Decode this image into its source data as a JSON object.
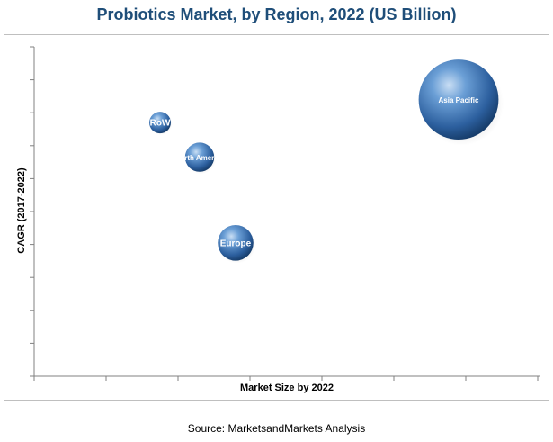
{
  "chart_data": {
    "type": "bubble",
    "title": "Probiotics Market, by Region, 2022 (US Billion)",
    "xlabel": "Market Size by 2022",
    "ylabel": "CAGR (2017-2022)",
    "grid": false,
    "axis_numbers_shown": false,
    "bubble_color": "#3b73b3",
    "points": [
      {
        "label": "RoW",
        "x": 1.75,
        "y": 7.7,
        "size": 1.0
      },
      {
        "label": "North America",
        "x": 2.3,
        "y": 6.65,
        "size": 1.35
      },
      {
        "label": "Europe",
        "x": 2.8,
        "y": 4.05,
        "size": 1.65
      },
      {
        "label": "Asia Pacific",
        "x": 5.9,
        "y": 8.4,
        "size": 3.7
      }
    ],
    "xlim": [
      0,
      7
    ],
    "ylim": [
      0,
      10
    ]
  },
  "source": "Source: MarketsandMarkets Analysis"
}
